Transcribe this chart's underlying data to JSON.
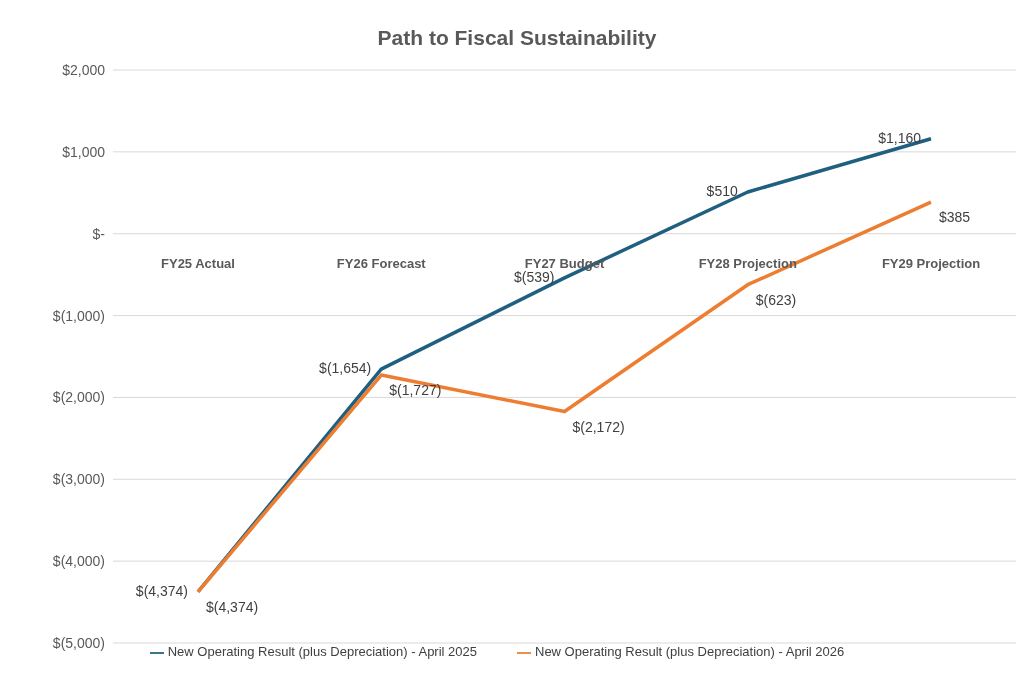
{
  "chart_data": {
    "type": "line",
    "title": "Path to Fiscal Sustainability",
    "categories": [
      "FY25 Actual",
      "FY26 Forecast",
      "FY27 Budget",
      "FY28 Projection",
      "FY29 Projection"
    ],
    "series": [
      {
        "name": "New Operating Result (plus Depreciation) - April 2025",
        "color": "#1f5f80",
        "values": [
          -4374,
          -1654,
          -539,
          510,
          1160
        ],
        "value_labels": [
          "$(4,374)",
          "$(1,654)",
          "$(539)",
          "$510",
          "$1,160"
        ]
      },
      {
        "name": "New Operating Result (plus Depreciation) - April 2026",
        "color": "#ed7d31",
        "values": [
          -4374,
          -1727,
          -2172,
          -623,
          385
        ],
        "value_labels": [
          "$(4,374)",
          "$(1,727)",
          "$(2,172)",
          "$(623)",
          "$385"
        ]
      }
    ],
    "ylim": [
      -5000,
      2000
    ],
    "yticks": [
      {
        "value": -5000,
        "label": "$(5,000)"
      },
      {
        "value": -4000,
        "label": "$(4,000)"
      },
      {
        "value": -3000,
        "label": "$(3,000)"
      },
      {
        "value": -2000,
        "label": "$(2,000)"
      },
      {
        "value": -1000,
        "label": "$(1,000)"
      },
      {
        "value": 0,
        "label": "$-"
      },
      {
        "value": 1000,
        "label": "$1,000"
      },
      {
        "value": 2000,
        "label": "$2,000"
      }
    ],
    "grid": "y",
    "legend": "bottom",
    "marker": "none",
    "line_style": "solid"
  }
}
